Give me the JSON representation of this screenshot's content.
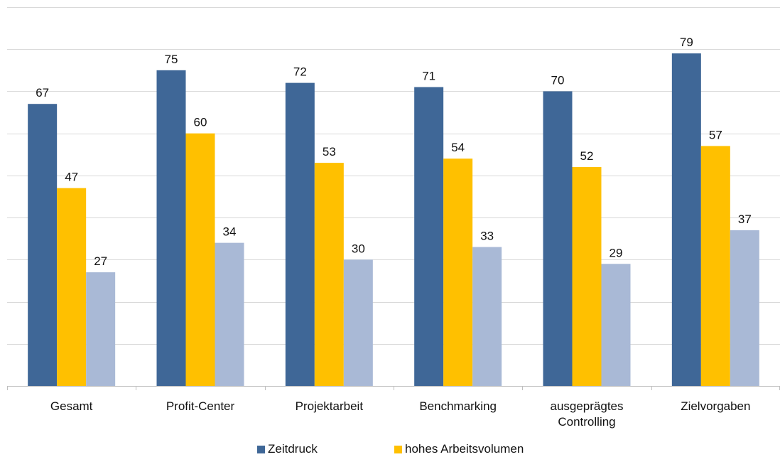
{
  "chart_data": {
    "type": "bar",
    "title": "",
    "xlabel": "",
    "ylabel": "",
    "ylim": [
      0,
      90
    ],
    "grid": true,
    "legend_position": "bottom",
    "categories": [
      "Gesamt",
      "Profit-Center",
      "Projektarbeit",
      "Benchmarking",
      "ausgeprägtes Controlling",
      "Zielvorgaben"
    ],
    "series": [
      {
        "name": "Zeitdruck",
        "color": "#3f6797",
        "values": [
          67,
          75,
          72,
          71,
          70,
          79
        ]
      },
      {
        "name": "hohes Arbeitsvolumen",
        "color": "#ffc000",
        "values": [
          47,
          60,
          53,
          54,
          52,
          57
        ]
      },
      {
        "name": "",
        "color": "#a9b9d6",
        "values": [
          27,
          34,
          30,
          33,
          29,
          37
        ]
      }
    ]
  }
}
